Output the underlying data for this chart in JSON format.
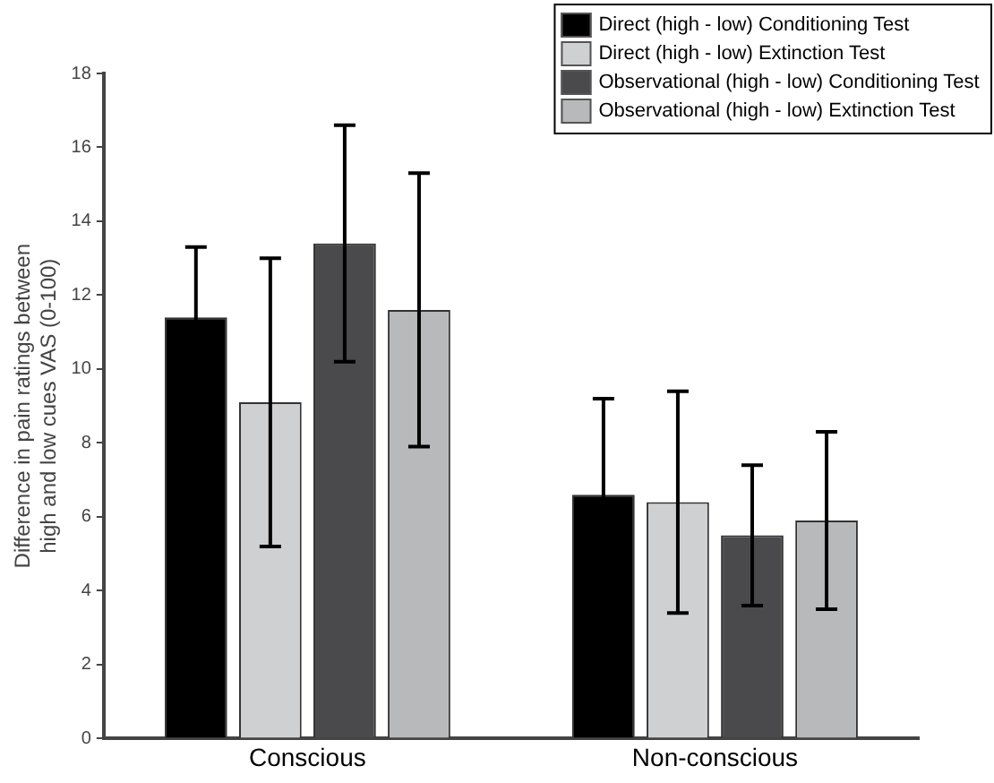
{
  "chart_data": {
    "type": "bar",
    "ylabel": "Difference in pain ratings between high and low cues VAS (0-100)",
    "categories": [
      "Conscious",
      "Non-conscious"
    ],
    "series": [
      {
        "name": "Direct (high - low) Conditioning Test",
        "color": "#000000",
        "values": [
          11.4,
          6.6
        ],
        "errors": [
          1.9,
          2.6
        ]
      },
      {
        "name": "Direct (high - low) Extinction Test",
        "color": "#cfd0d2",
        "values": [
          9.1,
          6.4
        ],
        "errors": [
          3.9,
          3.0
        ]
      },
      {
        "name": "Observational (high - low) Conditioning Test",
        "color": "#4a4a4c",
        "values": [
          13.4,
          5.5
        ],
        "errors": [
          3.2,
          1.9
        ]
      },
      {
        "name": "Observational (high - low) Extinction Test",
        "color": "#b8b9bb",
        "values": [
          11.6,
          5.9
        ],
        "errors": [
          3.7,
          2.4
        ]
      }
    ],
    "ylim": [
      0,
      18
    ],
    "yticks": [
      0,
      2,
      4,
      6,
      8,
      10,
      12,
      14,
      16,
      18
    ],
    "grid": false,
    "legend": "top right"
  }
}
